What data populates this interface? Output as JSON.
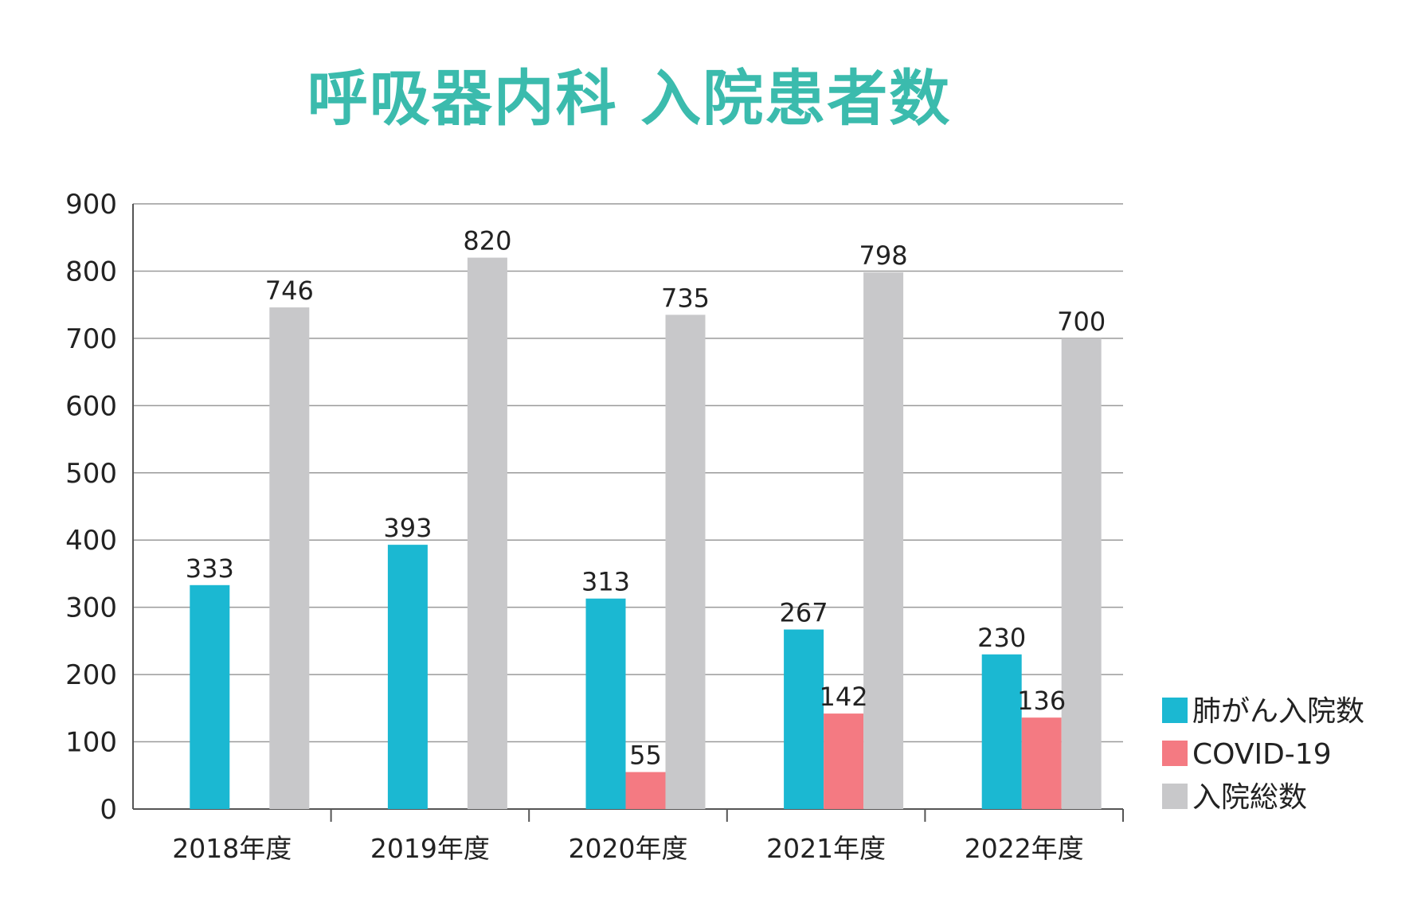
{
  "chart_data": {
    "type": "bar",
    "title": "呼吸器内科 入院患者数",
    "categories": [
      "2018年度",
      "2019年度",
      "2020年度",
      "2021年度",
      "2022年度"
    ],
    "series": [
      {
        "name": "肺がん入院数",
        "color": "#1bb8d2",
        "values": [
          333,
          393,
          313,
          267,
          230
        ]
      },
      {
        "name": "COVID-19",
        "color": "#f47a82",
        "values": [
          null,
          null,
          55,
          142,
          136
        ]
      },
      {
        "name": "入院総数",
        "color": "#c8c8ca",
        "values": [
          746,
          820,
          735,
          798,
          700
        ]
      }
    ],
    "ylim": [
      0,
      900
    ],
    "yticks": [
      0,
      100,
      200,
      300,
      400,
      500,
      600,
      700,
      800,
      900
    ],
    "grid": true,
    "legend_position": "bottom-right"
  }
}
